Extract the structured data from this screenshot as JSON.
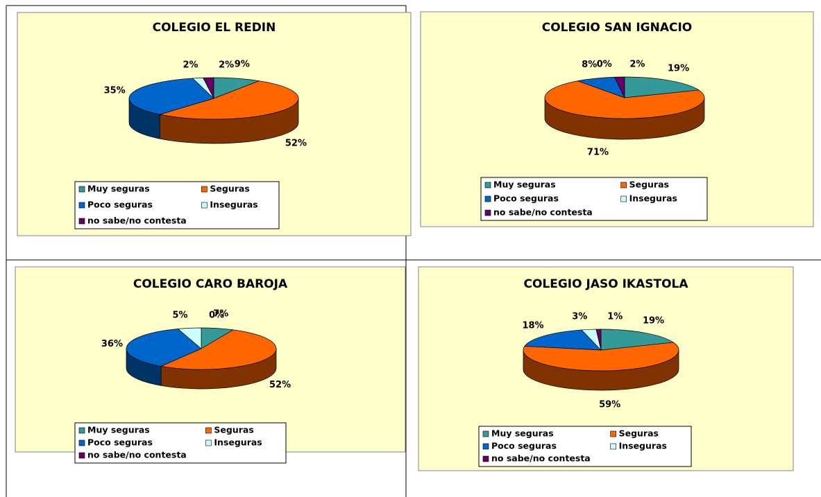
{
  "chart_data": [
    {
      "type": "pie",
      "title": "COLEGIO EL REDIN",
      "categories": [
        "Muy seguras",
        "Seguras",
        "Poco seguras",
        "Inseguras",
        "no sabe/no contesta"
      ],
      "values": [
        9,
        52,
        35,
        2,
        2
      ],
      "value_labels": [
        "9%",
        "52%",
        "35%",
        "2%",
        "2%"
      ],
      "colors": [
        "#339999",
        "#ff6600",
        "#0066cc",
        "#ccffff",
        "#660066"
      ],
      "legend": "bottom"
    },
    {
      "type": "pie",
      "title": "COLEGIO SAN IGNACIO",
      "categories": [
        "Muy seguras",
        "Seguras",
        "Poco seguras",
        "Inseguras",
        "no sabe/no contesta"
      ],
      "values": [
        19,
        71,
        8,
        0,
        2
      ],
      "value_labels": [
        "19%",
        "71%",
        "8%",
        "0%",
        "2%"
      ],
      "colors": [
        "#339999",
        "#ff6600",
        "#0066cc",
        "#ccffff",
        "#660066"
      ],
      "legend": "bottom"
    },
    {
      "type": "pie",
      "title": "COLEGIO CARO BAROJA",
      "categories": [
        "Muy seguras",
        "Seguras",
        "Poco seguras",
        "Inseguras",
        "no sabe/no contesta"
      ],
      "values": [
        7,
        52,
        36,
        5,
        0
      ],
      "value_labels": [
        "7%",
        "52%",
        "36%",
        "5%",
        "0%"
      ],
      "colors": [
        "#339999",
        "#ff6600",
        "#0066cc",
        "#ccffff",
        "#660066"
      ],
      "legend": "bottom"
    },
    {
      "type": "pie",
      "title": "COLEGIO JASO IKASTOLA",
      "categories": [
        "Muy seguras",
        "Seguras",
        "Poco seguras",
        "Inseguras",
        "no sabe/no contesta"
      ],
      "values": [
        19,
        59,
        18,
        3,
        1
      ],
      "value_labels": [
        "19%",
        "59%",
        "18%",
        "3%",
        "1%"
      ],
      "colors": [
        "#339999",
        "#ff6600",
        "#0066cc",
        "#ccffff",
        "#660066"
      ],
      "legend": "bottom"
    }
  ]
}
